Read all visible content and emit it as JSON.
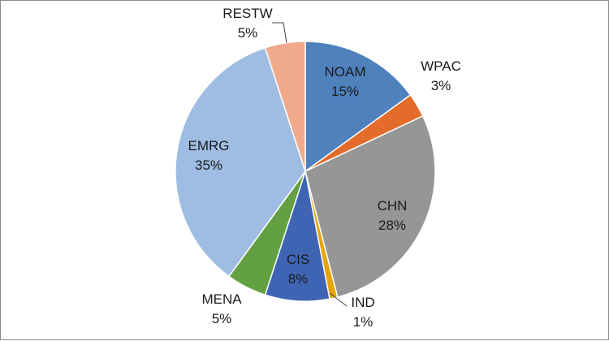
{
  "chart_data": {
    "type": "pie",
    "title": "",
    "start_angle_deg": 0,
    "direction": "clockwise",
    "legend": "none",
    "slices": [
      {
        "label": "NOAM",
        "value": 15,
        "display": "15%",
        "color": "#4f81bd",
        "label_placement": "inside"
      },
      {
        "label": "WPAC",
        "value": 3,
        "display": "3%",
        "color": "#e36c2a",
        "label_placement": "outside"
      },
      {
        "label": "CHN",
        "value": 28,
        "display": "28%",
        "color": "#969696",
        "label_placement": "inside"
      },
      {
        "label": "IND",
        "value": 1,
        "display": "1%",
        "color": "#e5a50a",
        "label_placement": "outside-leader"
      },
      {
        "label": "CIS",
        "value": 8,
        "display": "8%",
        "color": "#3f64b3",
        "label_placement": "inside"
      },
      {
        "label": "MENA",
        "value": 5,
        "display": "5%",
        "color": "#63a043",
        "label_placement": "outside"
      },
      {
        "label": "EMRG",
        "value": 35,
        "display": "35%",
        "color": "#9fbde3",
        "label_placement": "inside"
      },
      {
        "label": "RESTW",
        "value": 5,
        "display": "5%",
        "color": "#f1a98c",
        "label_placement": "outside-leader"
      }
    ]
  }
}
